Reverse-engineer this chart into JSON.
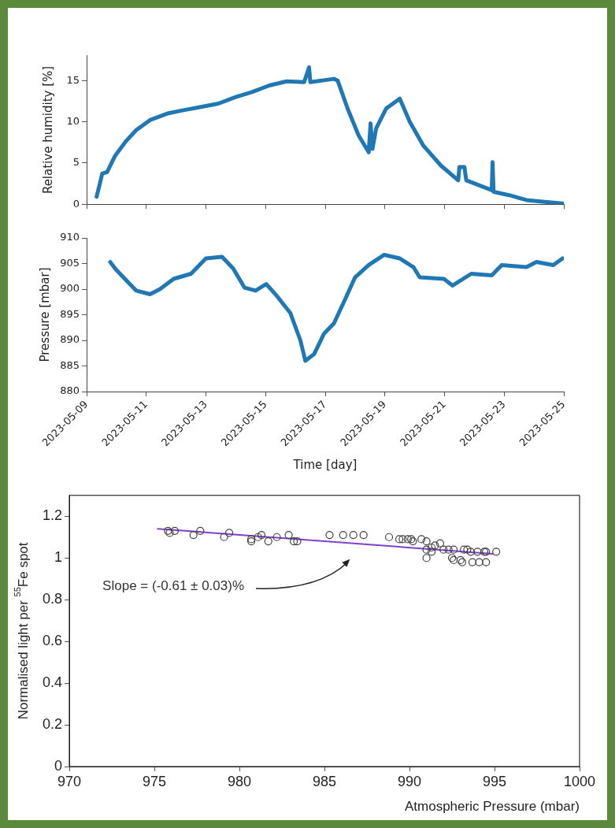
{
  "chart_data": [
    {
      "type": "line",
      "ylabel": "Relative humidity [%]",
      "color": "#1f77b4",
      "marker": "none",
      "tick_labels": "y",
      "x": [
        "2023-05-09T08:00",
        "2023-05-09T11:00",
        "2023-05-09T12:30",
        "2023-05-09T16:30",
        "2023-05-09T23:00",
        "2023-05-10T08:00",
        "2023-05-10T16:00",
        "2023-05-11T03:00",
        "2023-05-11T17:00",
        "2023-05-12T06:00",
        "2023-05-12T20:00",
        "2023-05-13T10:00",
        "2023-05-14T00:00",
        "2023-05-14T13:00",
        "2023-05-15T03:00",
        "2023-05-15T17:00",
        "2023-05-16T07:00",
        "2023-05-16T11:00",
        "2023-05-16T12:00",
        "2023-05-17T07:00",
        "2023-05-17T10:00",
        "2023-05-17T18:00",
        "2023-05-18T03:00",
        "2023-05-18T11:00",
        "2023-05-18T12:30",
        "2023-05-18T14:00",
        "2023-05-18T17:00",
        "2023-05-19T01:00",
        "2023-05-19T12:00",
        "2023-05-19T20:00",
        "2023-05-20T07:00",
        "2023-05-20T21:00",
        "2023-05-21T11:00",
        "2023-05-21T12:00",
        "2023-05-21T16:00",
        "2023-05-21T17:30",
        "2023-05-22T14:00",
        "2023-05-22T14:40",
        "2023-05-22T15:30",
        "2023-05-23T04:00",
        "2023-05-23T18:00",
        "2023-05-24T07:00",
        "2023-05-24T23:00"
      ],
      "values": [
        0.9,
        2.7,
        3.7,
        3.9,
        5.9,
        7.7,
        9.0,
        10.2,
        11.0,
        11.4,
        11.8,
        12.2,
        13.0,
        13.6,
        14.4,
        14.9,
        14.8,
        16.6,
        14.8,
        15.2,
        15.0,
        11.6,
        8.3,
        6.3,
        9.8,
        6.7,
        9.2,
        11.6,
        12.8,
        10.0,
        7.1,
        4.7,
        2.9,
        4.5,
        4.5,
        2.9,
        1.7,
        5.1,
        1.5,
        1.1,
        0.5,
        0.3,
        0.1
      ],
      "xlim": [
        "2023-05-09",
        "2023-05-25"
      ],
      "xticks": [
        "2023-05-09",
        "2023-05-11",
        "2023-05-13",
        "2023-05-15",
        "2023-05-17",
        "2023-05-19",
        "2023-05-21",
        "2023-05-23",
        "2023-05-25"
      ],
      "ylim": [
        0,
        18
      ],
      "yticks": [
        0,
        5,
        10,
        15
      ]
    },
    {
      "type": "line",
      "xlabel": "Time [day]",
      "ylabel": "Pressure [mbar]",
      "color": "#1f77b4",
      "marker": "none",
      "x": [
        "2023-05-09T19:00",
        "2023-05-09T23:00",
        "2023-05-10T08:00",
        "2023-05-10T16:00",
        "2023-05-11T03:00",
        "2023-05-11T11:00",
        "2023-05-11T22:00",
        "2023-05-12T12:00",
        "2023-05-13T00:00",
        "2023-05-13T13:00",
        "2023-05-13T22:00",
        "2023-05-14T07:00",
        "2023-05-14T16:00",
        "2023-05-15T00:30",
        "2023-05-15T09:00",
        "2023-05-15T20:00",
        "2023-05-16T04:00",
        "2023-05-16T08:00",
        "2023-05-16T15:00",
        "2023-05-16T23:00",
        "2023-05-17T07:00",
        "2023-05-17T16:00",
        "2023-05-18T00:00",
        "2023-05-18T11:00",
        "2023-05-18T23:30",
        "2023-05-19T12:00",
        "2023-05-19T23:00",
        "2023-05-20T04:00",
        "2023-05-20T23:30",
        "2023-05-21T06:30",
        "2023-05-21T21:30",
        "2023-05-22T14:00",
        "2023-05-22T22:00",
        "2023-05-23T18:00",
        "2023-05-24T02:00",
        "2023-05-24T15:30",
        "2023-05-24T23:00"
      ],
      "values": [
        905.3,
        904,
        901.7,
        899.7,
        899,
        900,
        902,
        903,
        906,
        906.3,
        904,
        900.3,
        899.7,
        901,
        898.7,
        895.3,
        890,
        886,
        887.3,
        891.3,
        893.3,
        898,
        902.3,
        904.7,
        906.7,
        906,
        904.3,
        902.3,
        902,
        900.7,
        903,
        902.7,
        904.7,
        904.3,
        905.3,
        904.7,
        906
      ],
      "xlim": [
        "2023-05-09",
        "2023-05-25"
      ],
      "xticks": [
        "2023-05-09",
        "2023-05-11",
        "2023-05-13",
        "2023-05-15",
        "2023-05-17",
        "2023-05-19",
        "2023-05-21",
        "2023-05-23",
        "2023-05-25"
      ],
      "ylim": [
        880,
        910
      ],
      "yticks": [
        880,
        885,
        890,
        895,
        900,
        905,
        910
      ]
    },
    {
      "type": "scatter",
      "xlabel": "Atmospheric Pressure (mbar)",
      "ylabel": "Normalised light per $^{55}$Fe spot",
      "marker": "circle",
      "series": [
        {
          "color": "#404040",
          "x": [
            975.8,
            975.9,
            976.2,
            977.3,
            977.7,
            979.1,
            979.4,
            980.7,
            980.7,
            981.1,
            981.3,
            981.7,
            982.2,
            982.9,
            983.2,
            983.4,
            985.3,
            986.1,
            986.7,
            987.3,
            988.8,
            989.4,
            989.6,
            989.9,
            990.1,
            990.2,
            990.7,
            991.0,
            991.0,
            991.0,
            991.3,
            991.3,
            991.5,
            991.8,
            992.0,
            992.3,
            992.5,
            992.6,
            992.6,
            993.0,
            993.1,
            993.2,
            993.4,
            993.6,
            993.7,
            994.0,
            994.1,
            994.4,
            994.5,
            994.5,
            995.1
          ],
          "values": [
            1.13,
            1.12,
            1.13,
            1.11,
            1.13,
            1.1,
            1.12,
            1.09,
            1.08,
            1.1,
            1.11,
            1.08,
            1.1,
            1.11,
            1.08,
            1.08,
            1.11,
            1.11,
            1.11,
            1.11,
            1.1,
            1.09,
            1.09,
            1.09,
            1.09,
            1.08,
            1.09,
            1.08,
            1.04,
            1.0,
            1.05,
            1.03,
            1.06,
            1.07,
            1.04,
            1.04,
            1.0,
            1.04,
            0.99,
            0.99,
            0.98,
            1.04,
            1.04,
            1.03,
            0.98,
            1.03,
            0.98,
            1.03,
            0.98,
            1.03,
            1.03
          ]
        },
        {
          "type": "line",
          "marker": "none",
          "color": "#7f3fcf",
          "x": [
            975.2,
            994.9
          ],
          "values": [
            1.14,
            1.02
          ]
        }
      ],
      "annotations": [
        "Slope = (-0.61 ± 0.03)%"
      ],
      "xlim": [
        970,
        1000
      ],
      "xticks": [
        970,
        975,
        980,
        985,
        990,
        995,
        1000
      ],
      "ylim": [
        0,
        1.3
      ],
      "yticks": [
        0,
        0.2,
        0.4,
        0.6,
        0.8,
        1,
        1.2
      ]
    }
  ]
}
